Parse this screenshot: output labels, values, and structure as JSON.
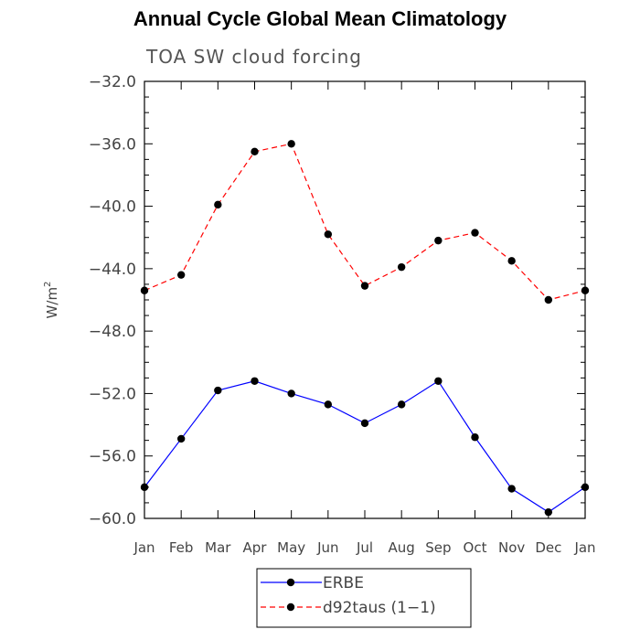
{
  "chart_data": {
    "type": "line",
    "title": "Annual Cycle Global Mean Climatology",
    "subtitle": "TOA SW cloud forcing",
    "ylabel": "W/m",
    "ylabel_sup": "2",
    "xlabel": "",
    "categories": [
      "Jan",
      "Feb",
      "Mar",
      "Apr",
      "May",
      "Jun",
      "Jul",
      "Aug",
      "Sep",
      "Oct",
      "Nov",
      "Dec",
      "Jan"
    ],
    "ylim": [
      -60.0,
      -32.0
    ],
    "yticks": [
      "-32.0",
      "-36.0",
      "-40.0",
      "-44.0",
      "-48.0",
      "-52.0",
      "-56.0",
      "-60.0"
    ],
    "grid": false,
    "legend_position": "bottom-center",
    "series": [
      {
        "name": "ERBE",
        "color": "#0000ff",
        "dash": "solid",
        "values": [
          -58.0,
          -54.9,
          -51.8,
          -51.2,
          -52.0,
          -52.7,
          -53.9,
          -52.7,
          -51.2,
          -54.8,
          -58.1,
          -59.6,
          -58.0
        ]
      },
      {
        "name": "d92taus (1-1)",
        "color": "#ff0000",
        "dash": "dashed",
        "values": [
          -45.4,
          -44.4,
          -39.9,
          -36.5,
          -36.0,
          -41.8,
          -45.1,
          -43.9,
          -42.2,
          -41.7,
          -43.5,
          -46.0,
          -45.4
        ]
      }
    ]
  }
}
